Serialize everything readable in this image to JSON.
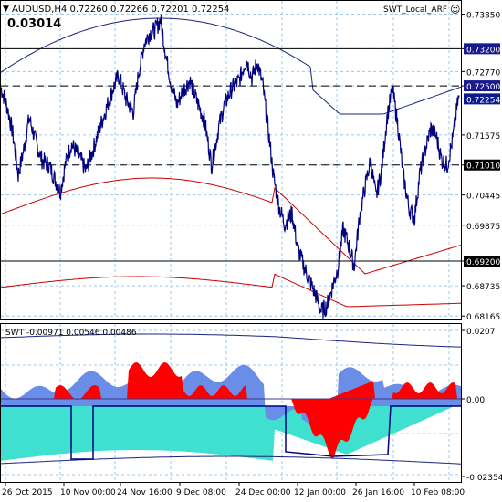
{
  "header": {
    "symbol_line": "AUDUSD,H4  0.72260 0.72266 0.72201 0.72254",
    "big_value": "0.03014",
    "indicator_name": "SWT_Local_ARF"
  },
  "sub_header": "SWT -0.00971 0.00546 0.00486",
  "price_axis": {
    "labels": [
      "0.73850",
      "0.73200",
      "0.72770",
      "0.72500",
      "0.72254",
      "0.71575",
      "0.71010",
      "0.70445",
      "0.69875",
      "0.69200",
      "0.68735",
      "0.68165"
    ],
    "highlighted": [
      "0.73200",
      "0.72500",
      "0.72254",
      "0.71010",
      "0.69200"
    ]
  },
  "sub_axis": {
    "labels": [
      "0.0207",
      "0.00",
      "-0.02354"
    ]
  },
  "time_axis": {
    "labels": [
      "26 Oct 2015",
      "10 Nov 00:00",
      "24 Nov 16:00",
      "9 Dec 08:00",
      "24 Dec 00:00",
      "12 Jan 00:00",
      "26 Jan 16:00",
      "10 Feb 08:00"
    ]
  },
  "colors": {
    "price_line": "#00007f",
    "upper_band": "#1a237e",
    "lower_band": "#cc0000",
    "hline": "#000000",
    "grid": "#9ec7e8",
    "hist_cyan": "#40e0d0",
    "hist_blue": "#6a8ee8",
    "hist_red": "#ff0000"
  },
  "chart_data": {
    "type": "line",
    "title": "AUDUSD,H4",
    "ylim": [
      0.681,
      0.741
    ],
    "close_anchor_points": [
      [
        0,
        0.7252
      ],
      [
        8,
        0.721
      ],
      [
        14,
        0.716
      ],
      [
        20,
        0.7082
      ],
      [
        26,
        0.713
      ],
      [
        32,
        0.719
      ],
      [
        40,
        0.714
      ],
      [
        46,
        0.711
      ],
      [
        54,
        0.71
      ],
      [
        60,
        0.7075
      ],
      [
        66,
        0.705
      ],
      [
        72,
        0.7105
      ],
      [
        78,
        0.714
      ],
      [
        86,
        0.712
      ],
      [
        94,
        0.709
      ],
      [
        102,
        0.713
      ],
      [
        110,
        0.7175
      ],
      [
        118,
        0.7215
      ],
      [
        124,
        0.7245
      ],
      [
        130,
        0.727
      ],
      [
        138,
        0.7225
      ],
      [
        146,
        0.72
      ],
      [
        152,
        0.7275
      ],
      [
        158,
        0.733
      ],
      [
        164,
        0.735
      ],
      [
        170,
        0.7355
      ],
      [
        176,
        0.7375
      ],
      [
        182,
        0.7305
      ],
      [
        188,
        0.725
      ],
      [
        194,
        0.7215
      ],
      [
        200,
        0.724
      ],
      [
        208,
        0.726
      ],
      [
        216,
        0.722
      ],
      [
        224,
        0.7185
      ],
      [
        232,
        0.71
      ],
      [
        240,
        0.7175
      ],
      [
        246,
        0.7215
      ],
      [
        254,
        0.7245
      ],
      [
        262,
        0.726
      ],
      [
        270,
        0.73
      ],
      [
        276,
        0.7265
      ],
      [
        282,
        0.7295
      ],
      [
        288,
        0.725
      ],
      [
        294,
        0.7165
      ],
      [
        300,
        0.7075
      ],
      [
        306,
        0.702
      ],
      [
        312,
        0.699
      ],
      [
        320,
        0.701
      ],
      [
        326,
        0.6945
      ],
      [
        334,
        0.6905
      ],
      [
        340,
        0.688
      ],
      [
        346,
        0.6855
      ],
      [
        352,
        0.6825
      ],
      [
        358,
        0.6835
      ],
      [
        364,
        0.687
      ],
      [
        370,
        0.6905
      ],
      [
        376,
        0.698
      ],
      [
        382,
        0.695
      ],
      [
        388,
        0.691
      ],
      [
        394,
        0.7005
      ],
      [
        400,
        0.706
      ],
      [
        406,
        0.711
      ],
      [
        412,
        0.704
      ],
      [
        418,
        0.709
      ],
      [
        424,
        0.719
      ],
      [
        430,
        0.7245
      ],
      [
        436,
        0.7175
      ],
      [
        442,
        0.708
      ],
      [
        448,
        0.702
      ],
      [
        454,
        0.7
      ],
      [
        460,
        0.7085
      ],
      [
        466,
        0.713
      ],
      [
        472,
        0.717
      ],
      [
        478,
        0.7155
      ],
      [
        484,
        0.711
      ],
      [
        490,
        0.71
      ],
      [
        496,
        0.715
      ],
      [
        502,
        0.7225
      ]
    ],
    "horizontal_levels": [
      {
        "value": 0.732,
        "style": "solid"
      },
      {
        "value": 0.725,
        "style": "dashed"
      },
      {
        "value": 0.7101,
        "style": "dashed"
      },
      {
        "value": 0.692,
        "style": "solid"
      }
    ]
  }
}
